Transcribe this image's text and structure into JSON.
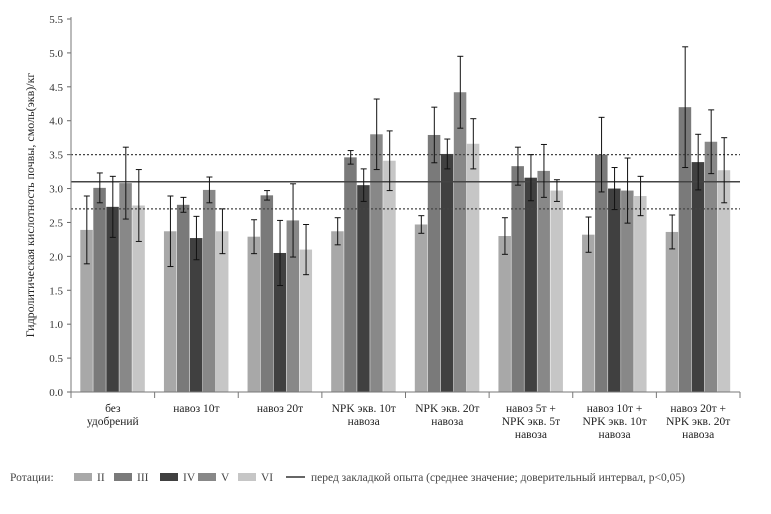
{
  "chart_data": {
    "type": "bar",
    "title": "",
    "ylabel": "Гидролитическая  кислотность почвы, смоль(экв)/кг",
    "xlabel": "",
    "ylim": [
      0,
      5.5
    ],
    "yticks": [
      "0.0",
      "0.5",
      "1.0",
      "1.5",
      "2.0",
      "2.5",
      "3.0",
      "3.5",
      "4.0",
      "4.5",
      "5.0",
      "5.5"
    ],
    "categories": [
      [
        "без",
        "удобрений"
      ],
      [
        "навоз 10т"
      ],
      [
        "навоз 20т"
      ],
      [
        "NPK экв. 10т",
        "навоза"
      ],
      [
        "NPK экв. 20т",
        "навоза"
      ],
      [
        "навоз 5т +",
        "NPK экв. 5т",
        "навоза"
      ],
      [
        "навоз 10т +",
        "NPK экв. 10т",
        "навоза"
      ],
      [
        "навоз 20т +",
        "NPK экв. 20т",
        "навоза"
      ]
    ],
    "series": [
      {
        "name": "II",
        "color": "#a8a8a8",
        "values": [
          2.39,
          2.37,
          2.29,
          2.37,
          2.47,
          2.3,
          2.32,
          2.36
        ],
        "err": [
          0.5,
          0.52,
          0.25,
          0.2,
          0.13,
          0.27,
          0.26,
          0.25
        ]
      },
      {
        "name": "III",
        "color": "#7a7a7a",
        "values": [
          3.01,
          2.76,
          2.9,
          3.46,
          3.79,
          3.33,
          3.5,
          4.2
        ],
        "err": [
          0.22,
          0.11,
          0.07,
          0.1,
          0.41,
          0.28,
          0.55,
          0.89
        ]
      },
      {
        "name": "IV",
        "color": "#404040",
        "values": [
          2.73,
          2.27,
          2.05,
          3.05,
          3.51,
          3.16,
          3.0,
          3.39
        ],
        "err": [
          0.45,
          0.32,
          0.48,
          0.24,
          0.22,
          0.34,
          0.31,
          0.41
        ]
      },
      {
        "name": "V",
        "color": "#888888",
        "values": [
          3.08,
          2.98,
          2.53,
          3.8,
          4.42,
          3.26,
          2.97,
          3.69
        ],
        "err": [
          0.53,
          0.19,
          0.54,
          0.52,
          0.53,
          0.39,
          0.48,
          0.47
        ]
      },
      {
        "name": "VI",
        "color": "#c6c6c6",
        "values": [
          2.75,
          2.37,
          2.1,
          3.41,
          3.66,
          2.97,
          2.89,
          3.27
        ],
        "err": [
          0.53,
          0.33,
          0.37,
          0.44,
          0.37,
          0.16,
          0.29,
          0.48
        ]
      }
    ],
    "reference": {
      "mean": 3.1,
      "ci_low": 2.7,
      "ci_high": 3.5
    },
    "legend": {
      "title": "Ротации:",
      "ref_label": "перед закладкой опыта (среднее значение; доверительный интервал, p<0,05)"
    }
  }
}
